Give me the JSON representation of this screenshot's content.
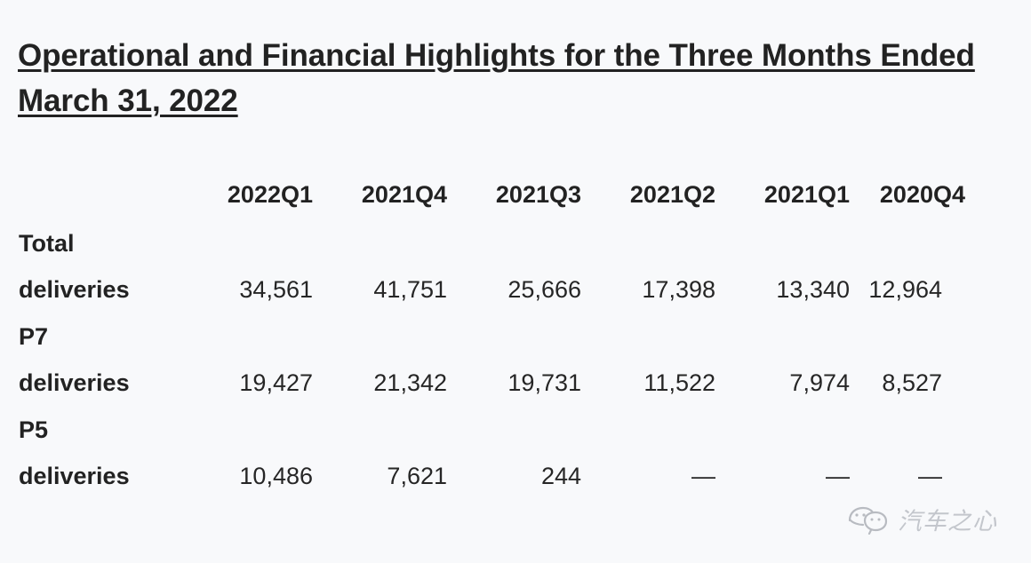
{
  "title": "Operational and Financial Highlights for the Three Months Ended March 31, 2022",
  "table": {
    "columns": [
      "2022Q1",
      "2021Q4",
      "2021Q3",
      "2021Q2",
      "2021Q1",
      "2020Q4"
    ],
    "rows": [
      {
        "label_line1": "Total",
        "label_line2": "deliveries",
        "values": [
          "34,561",
          "41,751",
          "25,666",
          "17,398",
          "13,340",
          "12,964"
        ]
      },
      {
        "label_line1": "P7",
        "label_line2": "deliveries",
        "values": [
          "19,427",
          "21,342",
          "19,731",
          "11,522",
          "7,974",
          "8,527"
        ]
      },
      {
        "label_line1": "P5",
        "label_line2": "deliveries",
        "values": [
          "10,486",
          "7,621",
          "244",
          "—",
          "—",
          "—"
        ]
      }
    ]
  },
  "watermark": {
    "icon": "wechat-icon",
    "text": "汽车之心"
  }
}
